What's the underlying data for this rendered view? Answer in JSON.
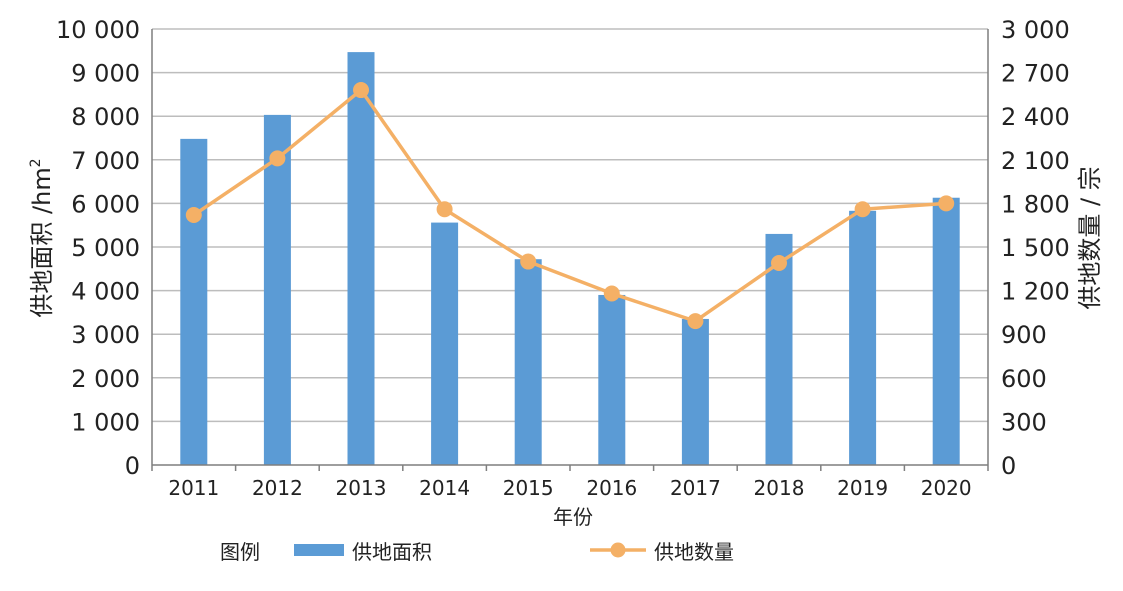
{
  "chart_data": {
    "type": "bar",
    "categories": [
      "2011",
      "2012",
      "2013",
      "2014",
      "2015",
      "2016",
      "2017",
      "2018",
      "2019",
      "2020"
    ],
    "series": [
      {
        "name": "供地面积",
        "type": "bar",
        "axis": "left",
        "color": "#5b9bd5",
        "values": [
          7480,
          8030,
          9470,
          5560,
          4720,
          3900,
          3350,
          5300,
          5830,
          6130
        ]
      },
      {
        "name": "供地数量",
        "type": "line",
        "axis": "right",
        "color": "#f4b066",
        "values": [
          1720,
          2110,
          2580,
          1760,
          1400,
          1180,
          990,
          1390,
          1760,
          1800
        ]
      }
    ],
    "xlabel": "年份",
    "ylabel_left": "供地面积 /hm",
    "ylabel_left_sup": "2",
    "ylabel_right": "供地数量 / 宗",
    "ylim_left": [
      0,
      10000
    ],
    "ylim_right": [
      0,
      3000
    ],
    "yticks_left": [
      "0",
      "1 000",
      "2 000",
      "3 000",
      "4 000",
      "5 000",
      "6 000",
      "7 000",
      "8 000",
      "9 000",
      "10 000"
    ],
    "yticks_right": [
      "0",
      "300",
      "600",
      "900",
      "1 200",
      "1 500",
      "1 800",
      "2 100",
      "2 400",
      "2 700",
      "3 000"
    ],
    "grid": true,
    "legend": {
      "title": "图例",
      "placement": "bottom"
    }
  }
}
